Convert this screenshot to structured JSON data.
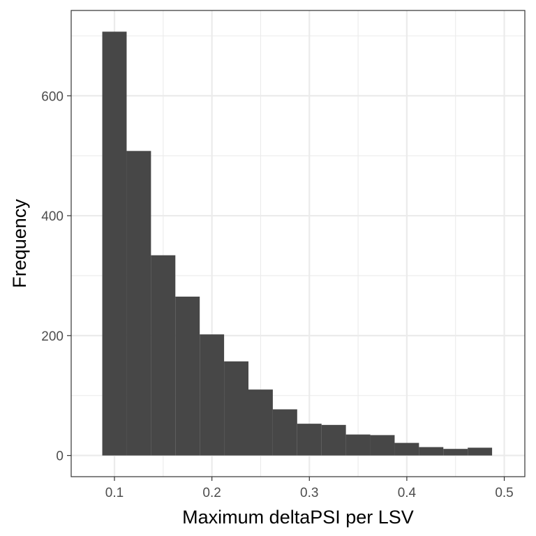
{
  "chart_data": {
    "type": "bar",
    "xlabel": "Maximum deltaPSI per LSV",
    "ylabel": "Frequency",
    "xlim": [
      0.0556,
      0.5211
    ],
    "ylim": [
      -35.35,
      742.35
    ],
    "x_ticks": [
      {
        "value": 0.1,
        "label": "0.1"
      },
      {
        "value": 0.2,
        "label": "0.2"
      },
      {
        "value": 0.3,
        "label": "0.3"
      },
      {
        "value": 0.4,
        "label": "0.4"
      },
      {
        "value": 0.5,
        "label": "0.5"
      }
    ],
    "y_ticks": [
      {
        "value": 0,
        "label": "0"
      },
      {
        "value": 200,
        "label": "200"
      },
      {
        "value": 400,
        "label": "400"
      },
      {
        "value": 600,
        "label": "600"
      }
    ],
    "grid": true,
    "bin_width": 0.025,
    "bins": [
      {
        "x0": 0.0875,
        "x1": 0.1125,
        "count": 707
      },
      {
        "x0": 0.1125,
        "x1": 0.1375,
        "count": 508
      },
      {
        "x0": 0.1375,
        "x1": 0.1625,
        "count": 334
      },
      {
        "x0": 0.1625,
        "x1": 0.1875,
        "count": 265
      },
      {
        "x0": 0.1875,
        "x1": 0.2125,
        "count": 202
      },
      {
        "x0": 0.2125,
        "x1": 0.2375,
        "count": 157
      },
      {
        "x0": 0.2375,
        "x1": 0.2625,
        "count": 110
      },
      {
        "x0": 0.2625,
        "x1": 0.2875,
        "count": 77
      },
      {
        "x0": 0.2875,
        "x1": 0.3125,
        "count": 53
      },
      {
        "x0": 0.3125,
        "x1": 0.3375,
        "count": 51
      },
      {
        "x0": 0.3375,
        "x1": 0.3625,
        "count": 35
      },
      {
        "x0": 0.3625,
        "x1": 0.3875,
        "count": 34
      },
      {
        "x0": 0.3875,
        "x1": 0.4125,
        "count": 21
      },
      {
        "x0": 0.4125,
        "x1": 0.4375,
        "count": 14
      },
      {
        "x0": 0.4375,
        "x1": 0.4625,
        "count": 11
      },
      {
        "x0": 0.4625,
        "x1": 0.4875,
        "count": 13
      }
    ],
    "colors": {
      "bar_fill": "#474747",
      "panel_border": "#333333",
      "grid": "#ebebeb",
      "tick_text": "#4d4d4d",
      "axis_title": "#000000"
    }
  }
}
